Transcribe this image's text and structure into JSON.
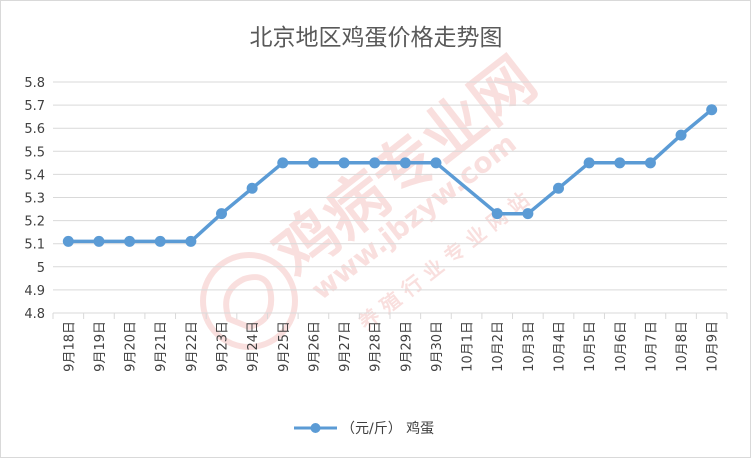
{
  "chart_data": {
    "type": "line",
    "title": "北京地区鸡蛋价格走势图",
    "xlabel": "",
    "ylabel": "",
    "ylim": [
      4.8,
      5.8
    ],
    "yticks": [
      "4.8",
      "4.9",
      "5",
      "5.1",
      "5.2",
      "5.3",
      "5.4",
      "5.5",
      "5.6",
      "5.7",
      "5.8"
    ],
    "grid": true,
    "legend_position": "bottom",
    "categories": [
      "9月18日",
      "9月19日",
      "9月20日",
      "9月21日",
      "9月22日",
      "9月23日",
      "9月24日",
      "9月25日",
      "9月26日",
      "9月27日",
      "9月28日",
      "9月29日",
      "9月30日",
      "10月1日",
      "10月2日",
      "10月3日",
      "10月4日",
      "10月5日",
      "10月6日",
      "10月7日",
      "10月8日",
      "10月9日"
    ],
    "series": [
      {
        "name": "（元/斤） 鸡蛋",
        "color": "#5b9bd5",
        "values": [
          5.11,
          5.11,
          5.11,
          5.11,
          5.11,
          5.23,
          5.34,
          5.45,
          5.45,
          5.45,
          5.45,
          5.45,
          5.45,
          null,
          5.23,
          5.23,
          5.34,
          5.45,
          5.45,
          5.45,
          5.57,
          5.68
        ]
      }
    ]
  },
  "watermark": {
    "text": "鸡病专业网",
    "url": "www.jbzyw.com",
    "tagline": "养 殖 行 业 专 业 网 站",
    "color": "#e8736b"
  },
  "colors": {
    "grid": "#d9d9d9",
    "axis_text": "#404040",
    "title": "#595959"
  }
}
